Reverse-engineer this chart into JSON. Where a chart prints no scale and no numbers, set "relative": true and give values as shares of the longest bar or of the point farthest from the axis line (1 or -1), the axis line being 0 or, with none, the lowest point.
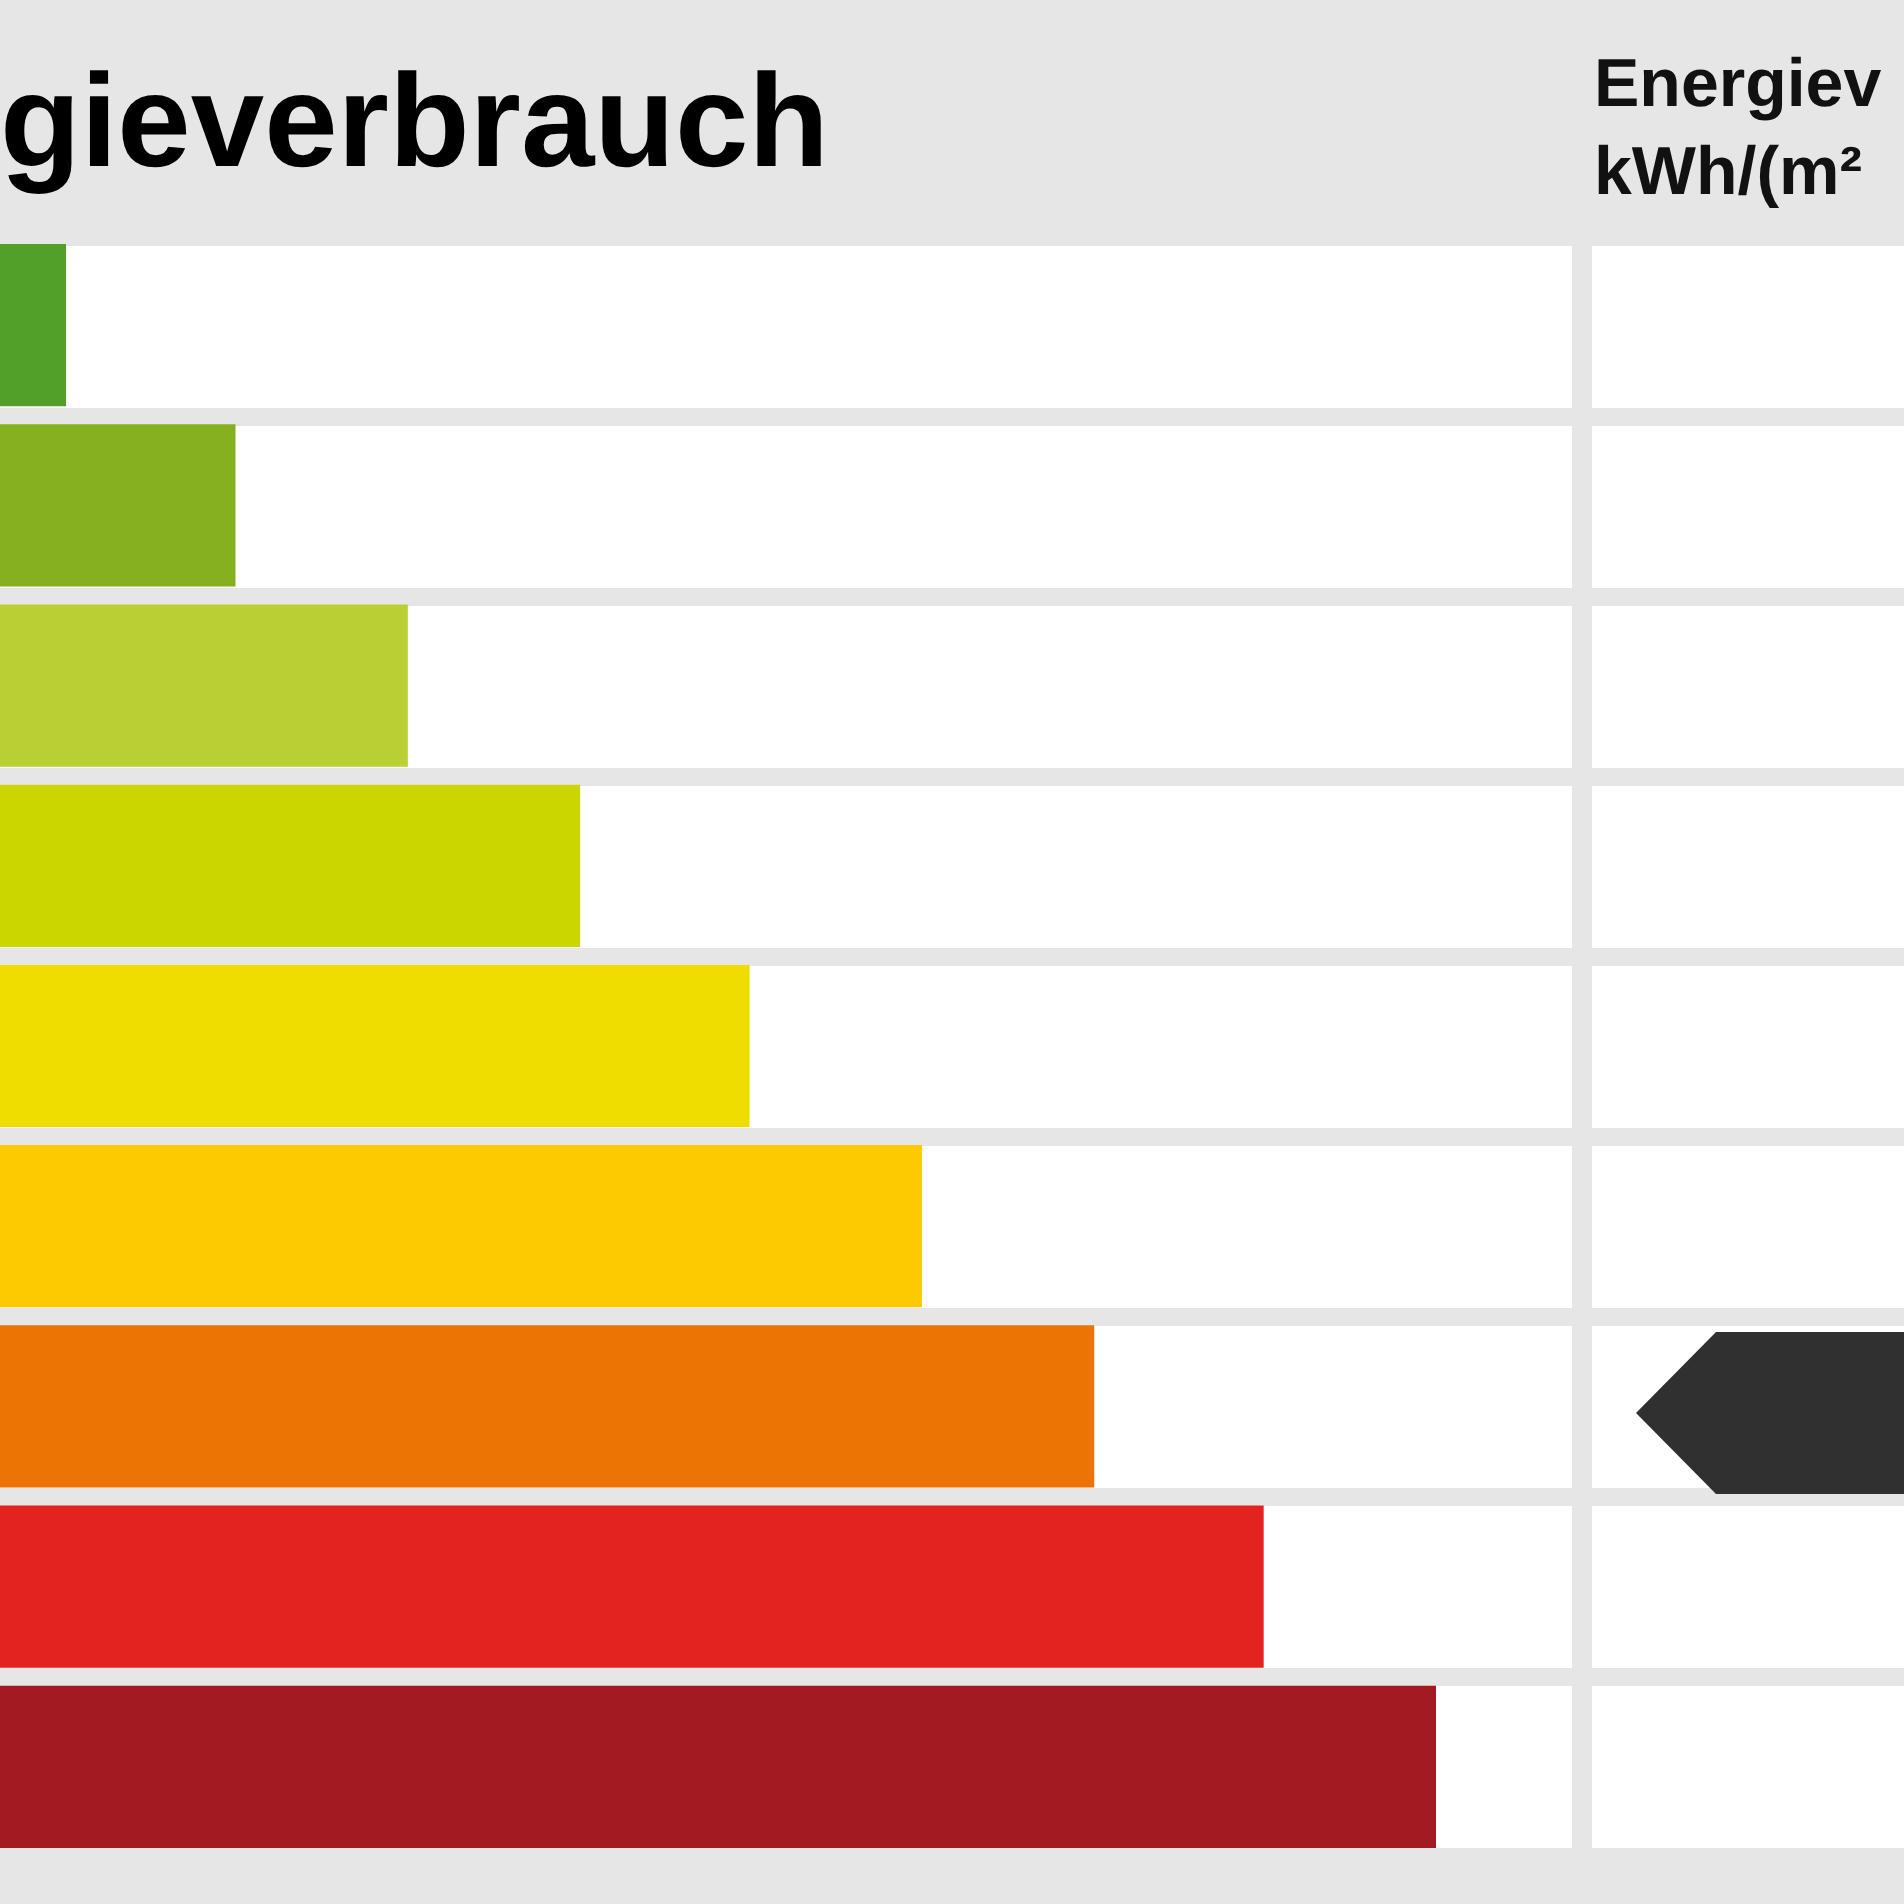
{
  "chart_data": {
    "type": "bar",
    "orientation": "horizontal",
    "relative": true,
    "title": "gieverbrauch",
    "annotations": [
      "Energiev",
      "kWh/(m²"
    ],
    "categories": [
      null,
      null,
      null,
      null,
      null,
      null,
      null,
      null,
      null
    ],
    "values": [
      0.046,
      0.164,
      0.284,
      0.404,
      0.522,
      0.642,
      0.762,
      0.88,
      1
    ],
    "colors": [
      "#52a02a",
      "#86b020",
      "#b9cf33",
      "#cbd500",
      "#efdd00",
      "#fdc900",
      "#eb7404",
      "#e2231f",
      "#a41a23"
    ]
  }
}
